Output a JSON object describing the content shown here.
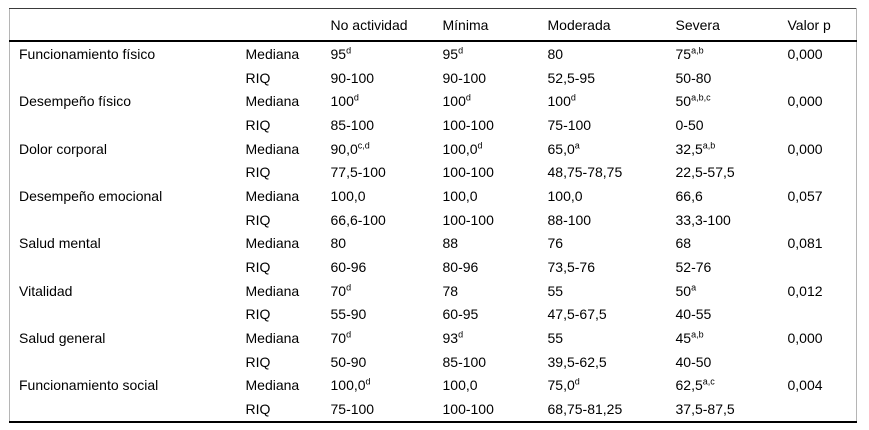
{
  "table": {
    "column_headers": [
      "No actividad",
      "Mínima",
      "Moderada",
      "Severa",
      "Valor p"
    ],
    "stat_labels": {
      "median": "Mediana",
      "iqr": "RIQ"
    },
    "rows": [
      {
        "label": "Funcionamiento físico",
        "mediana": [
          {
            "v": "95",
            "s": "d"
          },
          {
            "v": "95",
            "s": "d"
          },
          {
            "v": "80",
            "s": ""
          },
          {
            "v": "75",
            "s": "a,b"
          }
        ],
        "valor_p": "0,000",
        "riq": [
          "90-100",
          "90-100",
          "52,5-95",
          "50-80"
        ]
      },
      {
        "label": "Desempeño físico",
        "mediana": [
          {
            "v": "100",
            "s": "d"
          },
          {
            "v": "100",
            "s": "d"
          },
          {
            "v": "100",
            "s": "d"
          },
          {
            "v": "50",
            "s": "a,b,c"
          }
        ],
        "valor_p": "0,000",
        "riq": [
          "85-100",
          "100-100",
          "75-100",
          "0-50"
        ]
      },
      {
        "label": "Dolor corporal",
        "mediana": [
          {
            "v": "90,0",
            "s": "c,d"
          },
          {
            "v": "100,0",
            "s": "d"
          },
          {
            "v": "65,0",
            "s": "a"
          },
          {
            "v": "32,5",
            "s": "a,b"
          }
        ],
        "valor_p": "0,000",
        "riq": [
          "77,5-100",
          "100-100",
          "48,75-78,75",
          "22,5-57,5"
        ]
      },
      {
        "label": "Desempeño emocional",
        "mediana": [
          {
            "v": "100,0",
            "s": ""
          },
          {
            "v": "100,0",
            "s": ""
          },
          {
            "v": "100,0",
            "s": ""
          },
          {
            "v": "66,6",
            "s": ""
          }
        ],
        "valor_p": "0,057",
        "riq": [
          "66,6-100",
          "100-100",
          "88-100",
          "33,3-100"
        ]
      },
      {
        "label": "Salud mental",
        "mediana": [
          {
            "v": "80",
            "s": ""
          },
          {
            "v": "88",
            "s": ""
          },
          {
            "v": "76",
            "s": ""
          },
          {
            "v": "68",
            "s": ""
          }
        ],
        "valor_p": "0,081",
        "riq": [
          "60-96",
          "80-96",
          "73,5-76",
          "52-76"
        ]
      },
      {
        "label": "Vitalidad",
        "mediana": [
          {
            "v": "70",
            "s": "d"
          },
          {
            "v": "78",
            "s": ""
          },
          {
            "v": "55",
            "s": ""
          },
          {
            "v": "50",
            "s": "a"
          }
        ],
        "valor_p": "0,012",
        "riq": [
          "55-90",
          "60-95",
          "47,5-67,5",
          "40-55"
        ]
      },
      {
        "label": "Salud general",
        "mediana": [
          {
            "v": "70",
            "s": "d"
          },
          {
            "v": "93",
            "s": "d"
          },
          {
            "v": "55",
            "s": ""
          },
          {
            "v": "45",
            "s": "a,b"
          }
        ],
        "valor_p": "0,000",
        "riq": [
          "50-90",
          "85-100",
          "39,5-62,5",
          "40-50"
        ]
      },
      {
        "label": "Funcionamiento social",
        "mediana": [
          {
            "v": "100,0",
            "s": "d"
          },
          {
            "v": "100,0",
            "s": ""
          },
          {
            "v": "75,0",
            "s": "d"
          },
          {
            "v": "62,5",
            "s": "a,c"
          }
        ],
        "valor_p": "0,004",
        "riq": [
          "75-100",
          "100-100",
          "68,75-81,25",
          "37,5-87,5"
        ]
      }
    ]
  }
}
